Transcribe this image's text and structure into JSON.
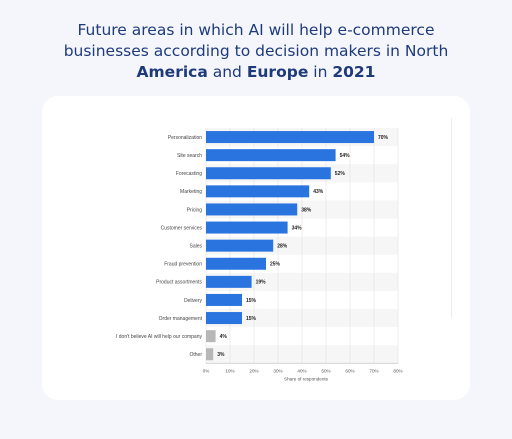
{
  "title": {
    "line1": "Future areas in which AI will help e-commerce",
    "line2": "businesses according to decision makers in North",
    "line3_b1": "America",
    "line3_t1": " and ",
    "line3_b2": "Europe",
    "line3_t2": " in ",
    "line3_b3": "2021"
  },
  "colors": {
    "bar": "#2a74e0",
    "bar_muted": "#b7b7b7",
    "title": "#1f3a7a",
    "stripe": "#f6f6f6",
    "grid": "#e3e3e3"
  },
  "chart_data": {
    "type": "bar",
    "orientation": "horizontal",
    "categories": [
      "Personalization",
      "Site search",
      "Forecasting",
      "Marketing",
      "Pricing",
      "Customer services",
      "Sales",
      "Fraud prevention",
      "Product assortments",
      "Delivery",
      "Order management",
      "I don't believe AI will help our company",
      "Other"
    ],
    "values": [
      70,
      54,
      52,
      43,
      38,
      34,
      28,
      25,
      19,
      15,
      15,
      4,
      3
    ],
    "value_labels": [
      "70%",
      "54%",
      "52%",
      "43%",
      "38%",
      "34%",
      "28%",
      "25%",
      "19%",
      "15%",
      "15%",
      "4%",
      "3%"
    ],
    "muted_categories": [
      "I don't believe AI will help our company",
      "Other"
    ],
    "xticks": [
      "0%",
      "10%",
      "20%",
      "30%",
      "40%",
      "50%",
      "60%",
      "70%",
      "80%"
    ],
    "xlim": [
      0,
      80
    ],
    "xlabel": "Share of respondents",
    "grid": true
  }
}
